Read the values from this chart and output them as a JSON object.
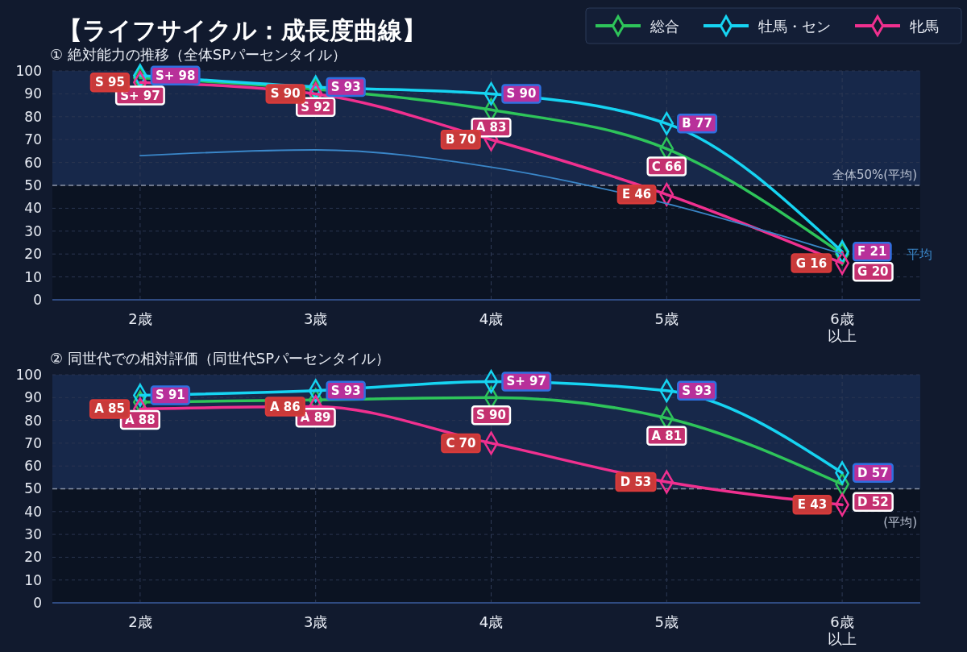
{
  "chart_data": [
    {
      "type": "line",
      "title": "【ライフサイクル：成長度曲線】",
      "subtitle": "① 絶対能力の推移（全体SPパーセンタイル）",
      "categories": [
        "2歳",
        "3歳",
        "4歳",
        "5歳",
        "6歳以上"
      ],
      "ylim": [
        0,
        100
      ],
      "yticks": [
        0,
        10,
        20,
        30,
        40,
        50,
        60,
        70,
        80,
        90,
        100
      ],
      "grid": true,
      "legend": "top right",
      "marker": "diamond",
      "line_style": "solid",
      "series": [
        {
          "name": "総合",
          "color": "#2ec45a",
          "values": [
            97,
            92,
            83,
            66,
            20
          ],
          "value_labels": [
            "S+ 97",
            "S 92",
            "A 83",
            "C 66",
            "G 20"
          ]
        },
        {
          "name": "牡馬・セン",
          "color": "#16d4f2",
          "values": [
            98,
            93,
            90,
            77,
            21
          ],
          "value_labels": [
            "S+ 98",
            "S 93",
            "S 90",
            "B 77",
            "F 21"
          ]
        },
        {
          "name": "牝馬",
          "color": "#f0308f",
          "values": [
            95,
            90,
            70,
            46,
            16
          ],
          "value_labels": [
            "S 95",
            "S 90",
            "B 70",
            "E 46",
            "G 16"
          ]
        },
        {
          "name": "平均",
          "type": "line",
          "color": "#3a86c8",
          "marker": "none",
          "values": [
            63,
            65.5,
            58,
            42,
            20
          ]
        }
      ],
      "ref_lines": [
        {
          "axis": "y",
          "value": 50,
          "label": "全体50%(平均)",
          "color": "#8a94a8",
          "line_style": "dashed"
        }
      ],
      "bands": [
        {
          "axis": "y",
          "from": 50,
          "to": 100,
          "color": "#17284a"
        }
      ]
    },
    {
      "type": "line",
      "subtitle": "② 同世代での相対評価（同世代SPパーセンタイル）",
      "categories": [
        "2歳",
        "3歳",
        "4歳",
        "5歳",
        "6歳以上"
      ],
      "ylim": [
        0,
        100
      ],
      "yticks": [
        0,
        10,
        20,
        30,
        40,
        50,
        60,
        70,
        80,
        90,
        100
      ],
      "grid": true,
      "marker": "diamond",
      "line_style": "solid",
      "series": [
        {
          "color": "#2ec45a",
          "values": [
            88,
            89,
            90,
            81,
            52
          ],
          "value_labels": [
            "A 88",
            "A 89",
            "S 90",
            "A 81",
            "D 52"
          ]
        },
        {
          "color": "#16d4f2",
          "values": [
            91,
            93,
            97,
            93,
            57
          ],
          "value_labels": [
            "S 91",
            "S 93",
            "S+ 97",
            "S 93",
            "D 57"
          ]
        },
        {
          "color": "#f0308f",
          "values": [
            85,
            86,
            70,
            53,
            43
          ],
          "value_labels": [
            "A 85",
            "A 86",
            "C 70",
            "D 53",
            "E 43"
          ]
        }
      ],
      "ref_lines": [
        {
          "axis": "y",
          "value": 50,
          "label": "(平均)",
          "color": "#8a94a8",
          "line_style": "dashed"
        }
      ],
      "bands": [
        {
          "axis": "y",
          "from": 50,
          "to": 100,
          "color": "#17284a"
        }
      ]
    }
  ]
}
